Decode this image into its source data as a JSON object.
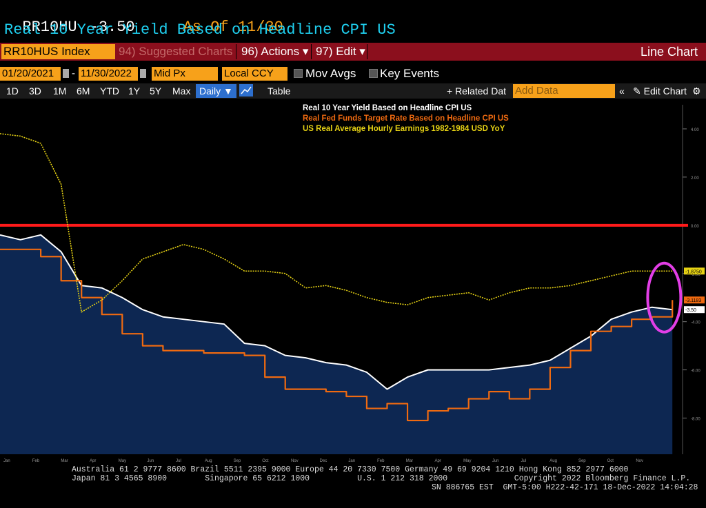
{
  "header": {
    "ticker": "RR10HU",
    "change": "-3.50",
    "as_of": "As Of 11/30",
    "title": "Real 10 Year Yield Based on Headline CPI US"
  },
  "toolbar": {
    "security": "RR10HUS Index",
    "suggested": "94) Suggested Charts",
    "actions": "96) Actions ▾",
    "edit": "97) Edit ▾",
    "chart_type": "Line Chart"
  },
  "settings": {
    "start_date": "01/20/2021",
    "end_date": "11/30/2022",
    "price_field": "Mid Px",
    "currency": "Local CCY",
    "mov_avgs": "Mov Avgs",
    "key_events": "Key Events"
  },
  "periods": {
    "items": [
      "1D",
      "3D",
      "1M",
      "6M",
      "YTD",
      "1Y",
      "5Y",
      "Max"
    ],
    "frequency": "Daily ▼",
    "table": "Table",
    "related": "+ Related Dat",
    "add_data": "Add Data",
    "edit_chart": "✎ Edit Chart"
  },
  "colors": {
    "real10y": "#ffffff",
    "fedfunds": "#f06a10",
    "earnings": "#e6d214",
    "fill": "#0d2752",
    "zero_line": "#ff1a1a",
    "circle": "#e23ee6"
  },
  "chart_data": {
    "type": "line",
    "title": "",
    "ylim": [
      -9.5,
      5
    ],
    "yticks": [
      4.0,
      2.0,
      0.0,
      -2.0,
      -4.0,
      -6.0,
      -8.0
    ],
    "ytick_labels": [
      "4.00",
      "2.00",
      "0.00",
      "-2.00",
      "-4.00",
      "-6.00",
      "-8.00"
    ],
    "xticks": [
      "Jan",
      "Feb",
      "Mar",
      "Apr",
      "May",
      "Jun",
      "Jul",
      "Aug",
      "Sep",
      "Oct",
      "Nov",
      "Dec",
      "Jan",
      "Feb",
      "Mar",
      "Apr",
      "May",
      "Jun",
      "Jul",
      "Aug",
      "Sep",
      "Oct",
      "Nov"
    ],
    "xlabel": "",
    "ylabel": "",
    "legend": [
      "Real 10 Year Yield Based on Headline CPI US",
      "Real Fed Funds Target Rate Based on Headline CPI US",
      "US Real Average Hourly Earnings 1982-1984 USD YoY"
    ],
    "series": [
      {
        "name": "Real 10 Year Yield Based on Headline CPI US",
        "last_label": "-3.50",
        "points": [
          [
            0,
            -0.4
          ],
          [
            1,
            -0.6
          ],
          [
            2,
            -0.4
          ],
          [
            3,
            -1.1
          ],
          [
            4,
            -2.5
          ],
          [
            5,
            -2.6
          ],
          [
            6,
            -3.0
          ],
          [
            7,
            -3.5
          ],
          [
            8,
            -3.8
          ],
          [
            9,
            -3.9
          ],
          [
            10,
            -4.0
          ],
          [
            11,
            -4.1
          ],
          [
            12,
            -4.9
          ],
          [
            13,
            -5.0
          ],
          [
            14,
            -5.4
          ],
          [
            15,
            -5.5
          ],
          [
            16,
            -5.7
          ],
          [
            17,
            -5.8
          ],
          [
            18,
            -6.1
          ],
          [
            19,
            -6.8
          ],
          [
            20,
            -6.3
          ],
          [
            21,
            -6.0
          ],
          [
            22,
            -6.0
          ],
          [
            23,
            -6.0
          ],
          [
            24,
            -6.0
          ],
          [
            25,
            -5.9
          ],
          [
            26,
            -5.8
          ],
          [
            27,
            -5.6
          ],
          [
            28,
            -5.1
          ],
          [
            29,
            -4.6
          ],
          [
            30,
            -3.9
          ],
          [
            31,
            -3.6
          ],
          [
            32,
            -3.4
          ],
          [
            33,
            -3.5
          ]
        ]
      },
      {
        "name": "Real Fed Funds Target Rate Based on Headline CPI US",
        "last_label": "-3.1183",
        "points": [
          [
            0,
            -1.0
          ],
          [
            1,
            -1.0
          ],
          [
            2,
            -1.3
          ],
          [
            3,
            -2.3
          ],
          [
            4,
            -3.0
          ],
          [
            5,
            -3.7
          ],
          [
            6,
            -4.5
          ],
          [
            7,
            -5.0
          ],
          [
            8,
            -5.2
          ],
          [
            9,
            -5.2
          ],
          [
            10,
            -5.3
          ],
          [
            11,
            -5.3
          ],
          [
            12,
            -5.4
          ],
          [
            13,
            -6.3
          ],
          [
            14,
            -6.8
          ],
          [
            15,
            -6.8
          ],
          [
            16,
            -6.9
          ],
          [
            17,
            -7.1
          ],
          [
            18,
            -7.6
          ],
          [
            19,
            -7.4
          ],
          [
            20,
            -8.1
          ],
          [
            21,
            -7.7
          ],
          [
            22,
            -7.6
          ],
          [
            23,
            -7.2
          ],
          [
            24,
            -6.9
          ],
          [
            25,
            -7.2
          ],
          [
            26,
            -6.8
          ],
          [
            27,
            -5.9
          ],
          [
            28,
            -5.2
          ],
          [
            29,
            -4.4
          ],
          [
            30,
            -4.2
          ],
          [
            31,
            -3.9
          ],
          [
            32,
            -3.8
          ],
          [
            33,
            -3.1
          ]
        ]
      },
      {
        "name": "US Real Average Hourly Earnings 1982-1984 USD YoY",
        "last_label": "-1.8750",
        "points": [
          [
            0,
            3.8
          ],
          [
            1,
            3.7
          ],
          [
            2,
            3.4
          ],
          [
            3,
            1.7
          ],
          [
            4,
            -3.6
          ],
          [
            5,
            -3.1
          ],
          [
            6,
            -2.3
          ],
          [
            7,
            -1.4
          ],
          [
            8,
            -1.1
          ],
          [
            9,
            -0.8
          ],
          [
            10,
            -1.0
          ],
          [
            11,
            -1.4
          ],
          [
            12,
            -1.9
          ],
          [
            13,
            -1.9
          ],
          [
            14,
            -2.0
          ],
          [
            15,
            -2.6
          ],
          [
            16,
            -2.5
          ],
          [
            17,
            -2.7
          ],
          [
            18,
            -3.0
          ],
          [
            19,
            -3.2
          ],
          [
            20,
            -3.3
          ],
          [
            21,
            -3.0
          ],
          [
            22,
            -2.9
          ],
          [
            23,
            -2.8
          ],
          [
            24,
            -3.1
          ],
          [
            25,
            -2.8
          ],
          [
            26,
            -2.6
          ],
          [
            27,
            -2.6
          ],
          [
            28,
            -2.5
          ],
          [
            29,
            -2.3
          ],
          [
            30,
            -2.1
          ],
          [
            31,
            -1.9
          ],
          [
            32,
            -1.9
          ],
          [
            33,
            -1.9
          ]
        ]
      }
    ],
    "annotations": [
      "horizontal line at 0",
      "circle around latest values"
    ]
  },
  "footer": {
    "line1": "Australia 61 2 9777 8600 Brazil 5511 2395 9000 Europe 44 20 7330 7500 Germany 49 69 9204 1210 Hong Kong 852 2977 6000",
    "line2": "Japan 81 3 4565 8900        Singapore 65 6212 1000          U.S. 1 212 318 2000              Copyright 2022 Bloomberg Finance L.P.",
    "line3": "SN 886765 EST  GMT-5:00 H222-42-171 18-Dec-2022 14:04:28"
  }
}
